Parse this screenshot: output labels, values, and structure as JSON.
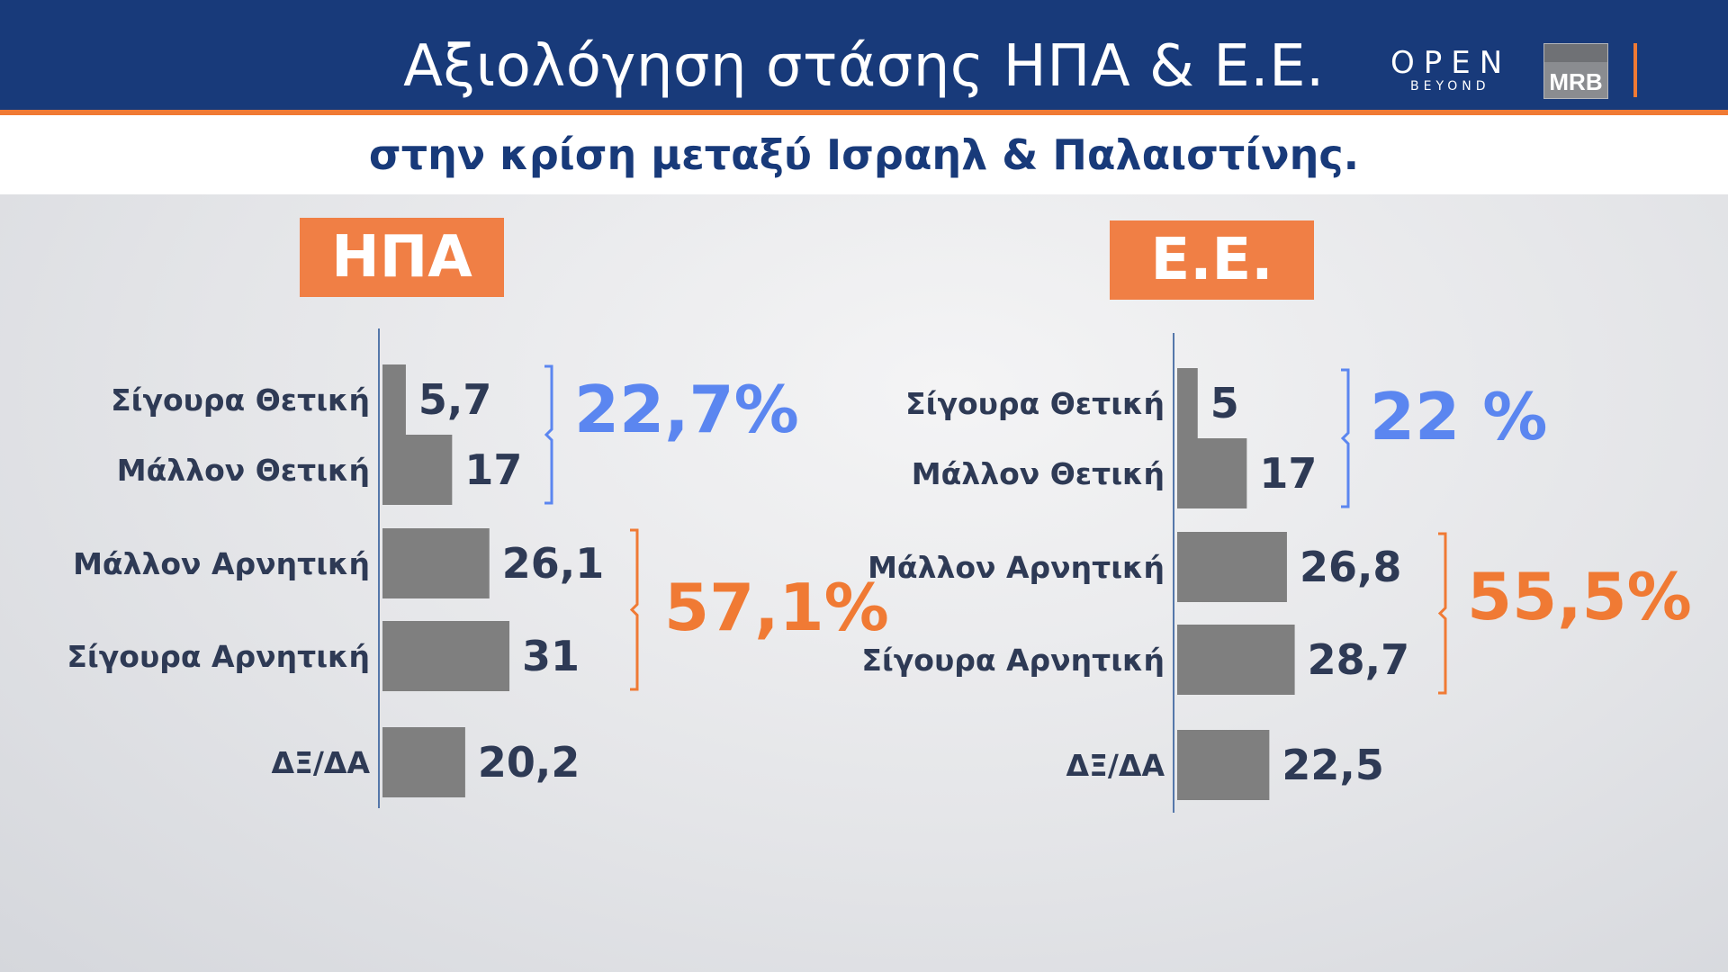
{
  "header": {
    "title": "Αξιολόγηση στάσης ΗΠΑ & Ε.Ε.",
    "subtitle": "στην κρίση μεταξύ Ισραηλ & Παλαιστίνης.",
    "open_logo": "OPEN",
    "open_logo_sub": "BEYOND",
    "mrb_logo": "MRB"
  },
  "colors": {
    "header_bg": "#183a7a",
    "accent_orange": "#f07a34",
    "bar_gray": "#7f7f7f",
    "positive_blue": "#5b86f0",
    "negative_orange": "#f07a34",
    "label_navy": "#2e3a55"
  },
  "chart_data": [
    {
      "type": "bar",
      "title": "ΗΠΑ",
      "categories": [
        "Σίγουρα Θετική",
        "Μάλλον Θετική",
        "Μάλλον Αρνητική",
        "Σίγουρα Αρνητική",
        "ΔΞ/ΔΑ"
      ],
      "values": [
        5.7,
        17,
        26.1,
        31,
        20.2
      ],
      "value_labels": [
        "5,7",
        "17",
        "26,1",
        "31",
        "20,2"
      ],
      "orientation": "horizontal",
      "groups": [
        {
          "label": "22,7%",
          "categories": [
            "Σίγουρα Θετική",
            "Μάλλον Θετική"
          ],
          "color": "#5b86f0"
        },
        {
          "label": "57,1%",
          "categories": [
            "Μάλλον Αρνητική",
            "Σίγουρα Αρνητική"
          ],
          "color": "#f07a34"
        }
      ],
      "xlim": [
        0,
        100
      ],
      "grid": false
    },
    {
      "type": "bar",
      "title": "Ε.Ε.",
      "categories": [
        "Σίγουρα Θετική",
        "Μάλλον Θετική",
        "Μάλλον Αρνητική",
        "Σίγουρα Αρνητική",
        "ΔΞ/ΔΑ"
      ],
      "values": [
        5,
        17,
        26.8,
        28.7,
        22.5
      ],
      "value_labels": [
        "5",
        "17",
        "26,8",
        "28,7",
        "22,5"
      ],
      "orientation": "horizontal",
      "groups": [
        {
          "label": "22 %",
          "categories": [
            "Σίγουρα Θετική",
            "Μάλλον Θετική"
          ],
          "color": "#5b86f0"
        },
        {
          "label": "55,5%",
          "categories": [
            "Μάλλον Αρνητική",
            "Σίγουρα Αρνητική"
          ],
          "color": "#f07a34"
        }
      ],
      "xlim": [
        0,
        100
      ],
      "grid": false
    }
  ]
}
